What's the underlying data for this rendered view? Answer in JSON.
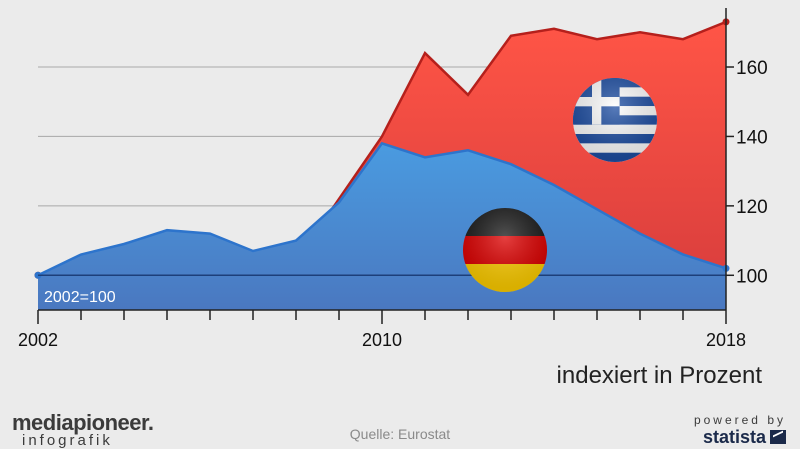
{
  "chart_data": {
    "type": "area",
    "x": [
      2002,
      2003,
      2004,
      2005,
      2006,
      2007,
      2008,
      2009,
      2010,
      2011,
      2012,
      2013,
      2014,
      2015,
      2016,
      2017,
      2018
    ],
    "series": [
      {
        "name": "Griechenland",
        "color": "#e8322a",
        "flag_icon": "greece-flag-icon",
        "values": [
          100,
          103,
          102,
          102,
          101,
          102,
          104,
          122,
          140,
          164,
          152,
          169,
          171,
          168,
          170,
          168,
          173
        ]
      },
      {
        "name": "Deutschland",
        "color": "#3a6fbf",
        "flag_icon": "germany-flag-icon",
        "values": [
          100,
          106,
          109,
          113,
          112,
          107,
          110,
          121,
          138,
          134,
          136,
          132,
          126,
          119,
          112,
          106,
          102
        ]
      }
    ],
    "x_ticks": [
      "2002",
      "2010",
      "2018"
    ],
    "y_ticks": [
      100,
      120,
      140,
      160
    ],
    "ylim": [
      90,
      177
    ],
    "y_axis_side": "right",
    "grid": true,
    "base_label": "2002=100",
    "unit_label": "indexiert in Prozent"
  },
  "footer": {
    "brand": "mediapioneer.",
    "brand_sub": "infografik",
    "source": "Quelle: Eurostat",
    "powered_by": "powered by",
    "statista": "statista"
  }
}
